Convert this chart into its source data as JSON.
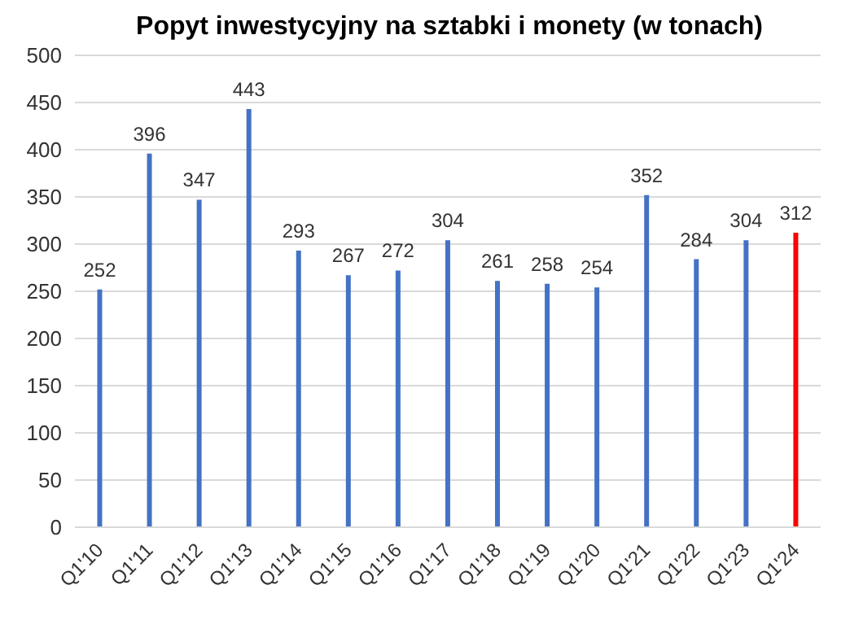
{
  "chart_data": {
    "type": "bar",
    "title": "Popyt inwestycyjny na sztabki i monety (w tonach)",
    "categories": [
      "Q1'10",
      "Q1'11",
      "Q1'12",
      "Q1'13",
      "Q1'14",
      "Q1'15",
      "Q1'16",
      "Q1'17",
      "Q1'18",
      "Q1'19",
      "Q1'20",
      "Q1'21",
      "Q1'22",
      "Q1'23",
      "Q1'24"
    ],
    "values": [
      252,
      396,
      347,
      443,
      293,
      267,
      272,
      304,
      261,
      258,
      254,
      352,
      284,
      304,
      312
    ],
    "colors": [
      "#4472c4",
      "#4472c4",
      "#4472c4",
      "#4472c4",
      "#4472c4",
      "#4472c4",
      "#4472c4",
      "#4472c4",
      "#4472c4",
      "#4472c4",
      "#4472c4",
      "#4472c4",
      "#4472c4",
      "#4472c4",
      "#ff0000"
    ],
    "ylim": [
      0,
      500
    ],
    "yticks": [
      0,
      50,
      100,
      150,
      200,
      250,
      300,
      350,
      400,
      450,
      500
    ],
    "grid": "y",
    "data_labels": true
  }
}
